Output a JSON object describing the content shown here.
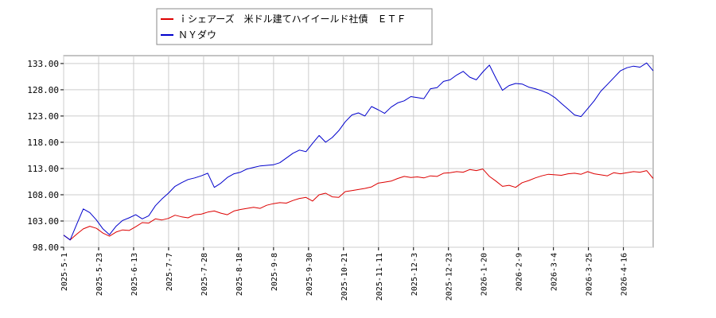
{
  "chart_data": {
    "type": "line",
    "title": "",
    "xlabel": "",
    "ylabel": "",
    "ylim": [
      98.0,
      134.5
    ],
    "grid": true,
    "legend_position": "top-left",
    "y_ticks": [
      "98.00",
      "103.00",
      "108.00",
      "113.00",
      "118.00",
      "123.00",
      "128.00",
      "133.00"
    ],
    "x_ticks": [
      "2025-5-1",
      "2025-5-23",
      "2025-6-13",
      "2025-7-7",
      "2025-7-28",
      "2025-8-18",
      "2025-9-8",
      "2025-9-30",
      "2025-10-21",
      "2025-11-11",
      "2025-12-3",
      "2025-12-23",
      "2026-1-20",
      "2026-2-9",
      "2026-3-4",
      "2026-3-25",
      "2026-4-16"
    ],
    "series": [
      {
        "name": "ｉシェアーズ　米ドル建てハイイールド社債　ＥＴＦ",
        "color": "#dd0000",
        "values": [
          100.3,
          99.4,
          100.5,
          101.5,
          102.0,
          101.6,
          100.7,
          100.1,
          100.9,
          101.3,
          101.2,
          101.9,
          102.7,
          102.6,
          103.4,
          103.2,
          103.5,
          104.1,
          103.8,
          103.6,
          104.2,
          104.3,
          104.7,
          104.9,
          104.5,
          104.2,
          104.9,
          105.2,
          105.4,
          105.6,
          105.4,
          106.0,
          106.3,
          106.5,
          106.4,
          106.9,
          107.3,
          107.5,
          106.8,
          108.0,
          108.3,
          107.6,
          107.5,
          108.6,
          108.8,
          109.0,
          109.2,
          109.5,
          110.2,
          110.4,
          110.6,
          111.1,
          111.5,
          111.3,
          111.4,
          111.2,
          111.6,
          111.5,
          112.1,
          112.2,
          112.4,
          112.3,
          112.8,
          112.6,
          112.9,
          111.5,
          110.6,
          109.6,
          109.8,
          109.4,
          110.3,
          110.7,
          111.2,
          111.6,
          111.9,
          111.8,
          111.7,
          112.0,
          112.1,
          111.9,
          112.4,
          112.0,
          111.8,
          111.6,
          112.2,
          112.0,
          112.2,
          112.4,
          112.3,
          112.6,
          111.1
        ]
      },
      {
        "name": "ＮＹダウ",
        "color": "#0000cc",
        "values": [
          100.3,
          99.4,
          102.4,
          105.3,
          104.6,
          103.2,
          101.5,
          100.4,
          102.0,
          103.1,
          103.6,
          104.2,
          103.4,
          104.0,
          105.9,
          107.2,
          108.3,
          109.6,
          110.3,
          110.9,
          111.2,
          111.6,
          112.1,
          109.4,
          110.2,
          111.3,
          112.0,
          112.3,
          112.9,
          113.2,
          113.5,
          113.6,
          113.7,
          114.1,
          115.0,
          115.9,
          116.5,
          116.2,
          117.8,
          119.3,
          118.0,
          118.9,
          120.2,
          121.9,
          123.2,
          123.6,
          123.0,
          124.8,
          124.2,
          123.5,
          124.7,
          125.5,
          125.9,
          126.7,
          126.5,
          126.3,
          128.2,
          128.4,
          129.6,
          129.9,
          130.8,
          131.5,
          130.4,
          129.9,
          131.4,
          132.7,
          130.2,
          127.9,
          128.8,
          129.2,
          129.1,
          128.5,
          128.2,
          127.8,
          127.3,
          126.5,
          125.4,
          124.3,
          123.2,
          122.9,
          124.4,
          125.9,
          127.7,
          129.0,
          130.3,
          131.6,
          132.2,
          132.5,
          132.3,
          133.1,
          131.6
        ]
      }
    ]
  }
}
